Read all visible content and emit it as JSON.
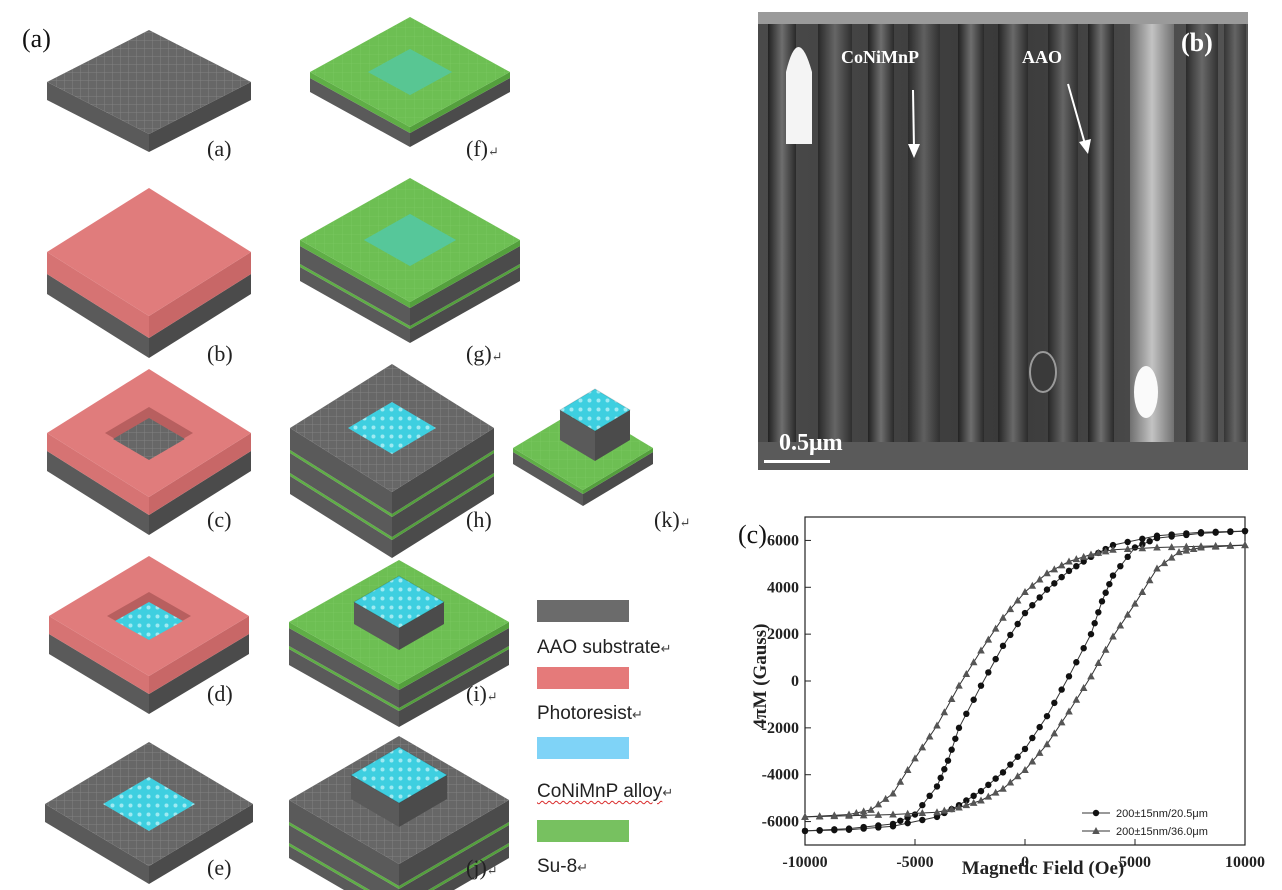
{
  "panel_a": {
    "label": "(a)",
    "steps": [
      {
        "id": "a",
        "label": "(a)",
        "mark": ""
      },
      {
        "id": "b",
        "label": "(b)",
        "mark": ""
      },
      {
        "id": "c",
        "label": "(c)",
        "mark": ""
      },
      {
        "id": "d",
        "label": "(d)",
        "mark": ""
      },
      {
        "id": "e",
        "label": "(e)",
        "mark": ""
      },
      {
        "id": "f",
        "label": "(f)",
        "mark": "↵"
      },
      {
        "id": "g",
        "label": "(g)",
        "mark": "↵"
      },
      {
        "id": "h",
        "label": "(h)",
        "mark": ""
      },
      {
        "id": "i",
        "label": "(i)",
        "mark": "↵"
      },
      {
        "id": "j",
        "label": "(j)",
        "mark": "↵"
      },
      {
        "id": "k",
        "label": "(k)",
        "mark": "↵"
      }
    ],
    "legend": [
      {
        "label": "AAO substrate",
        "mark": "↵",
        "color": "#6b6b6b"
      },
      {
        "label": "Photoresist",
        "mark": "↵",
        "color": "#e57a7a"
      },
      {
        "label": "CoNiMnP alloy",
        "mark": "↵",
        "color": "#7fd3f7"
      },
      {
        "label": "Su-8",
        "mark": "↵",
        "color": "#77c160"
      }
    ],
    "colors": {
      "substrate": "#676767",
      "photoresist": "#e07c7c",
      "alloy": "#3ecfe0",
      "su8": "#6dbf53"
    }
  },
  "panel_b": {
    "label": "(b)",
    "annotation_left": "CoNiMnP",
    "annotation_right": "AAO",
    "scale_bar": "0.5μm"
  },
  "panel_c": {
    "label": "(c)",
    "chart_data": {
      "type": "line",
      "xlabel": "Magnetic Field (Oe)",
      "ylabel": "4πM (Gauss)",
      "xlim": [
        -10000,
        10000
      ],
      "ylim": [
        -7000,
        7000
      ],
      "xticks": [
        -10000,
        -5000,
        0,
        5000,
        10000
      ],
      "yticks": [
        -6000,
        -4000,
        -2000,
        0,
        2000,
        4000,
        6000
      ],
      "legend_position": "bottom-right",
      "series": [
        {
          "name": "200±15nm/20.5μm",
          "marker": "circle",
          "upper": [
            [
              -10000,
              -6400
            ],
            [
              -8000,
              -6300
            ],
            [
              -6000,
              -6100
            ],
            [
              -5000,
              -5700
            ],
            [
              -4000,
              -4500
            ],
            [
              -3500,
              -3400
            ],
            [
              -3000,
              -2000
            ],
            [
              -2000,
              -200
            ],
            [
              -1000,
              1500
            ],
            [
              0,
              2900
            ],
            [
              1000,
              3900
            ],
            [
              2000,
              4700
            ],
            [
              3000,
              5300
            ],
            [
              4000,
              5800
            ],
            [
              6000,
              6200
            ],
            [
              8000,
              6350
            ],
            [
              10000,
              6400
            ]
          ],
          "lower": [
            [
              -10000,
              -6400
            ],
            [
              -8000,
              -6350
            ],
            [
              -6000,
              -6200
            ],
            [
              -4000,
              -5800
            ],
            [
              -3000,
              -5300
            ],
            [
              -2000,
              -4700
            ],
            [
              -1000,
              -3900
            ],
            [
              0,
              -2900
            ],
            [
              1000,
              -1500
            ],
            [
              2000,
              200
            ],
            [
              3000,
              2000
            ],
            [
              3500,
              3400
            ],
            [
              4000,
              4500
            ],
            [
              5000,
              5700
            ],
            [
              6000,
              6100
            ],
            [
              8000,
              6300
            ],
            [
              10000,
              6400
            ]
          ]
        },
        {
          "name": "200±15nm/36.0μm",
          "marker": "triangle",
          "upper": [
            [
              -10000,
              -5800
            ],
            [
              -8000,
              -5700
            ],
            [
              -7000,
              -5500
            ],
            [
              -6000,
              -4800
            ],
            [
              -5000,
              -3300
            ],
            [
              -4000,
              -1900
            ],
            [
              -3000,
              -200
            ],
            [
              -2000,
              1300
            ],
            [
              -1000,
              2700
            ],
            [
              0,
              3800
            ],
            [
              1000,
              4600
            ],
            [
              2000,
              5100
            ],
            [
              3000,
              5400
            ],
            [
              4000,
              5600
            ],
            [
              6000,
              5700
            ],
            [
              8000,
              5750
            ],
            [
              10000,
              5800
            ]
          ],
          "lower": [
            [
              -10000,
              -5800
            ],
            [
              -8000,
              -5750
            ],
            [
              -6000,
              -5700
            ],
            [
              -4000,
              -5600
            ],
            [
              -3000,
              -5400
            ],
            [
              -2000,
              -5100
            ],
            [
              -1000,
              -4600
            ],
            [
              0,
              -3800
            ],
            [
              1000,
              -2700
            ],
            [
              2000,
              -1300
            ],
            [
              3000,
              200
            ],
            [
              4000,
              1900
            ],
            [
              5000,
              3300
            ],
            [
              6000,
              4800
            ],
            [
              7000,
              5500
            ],
            [
              8000,
              5700
            ],
            [
              10000,
              5800
            ]
          ]
        }
      ]
    }
  }
}
